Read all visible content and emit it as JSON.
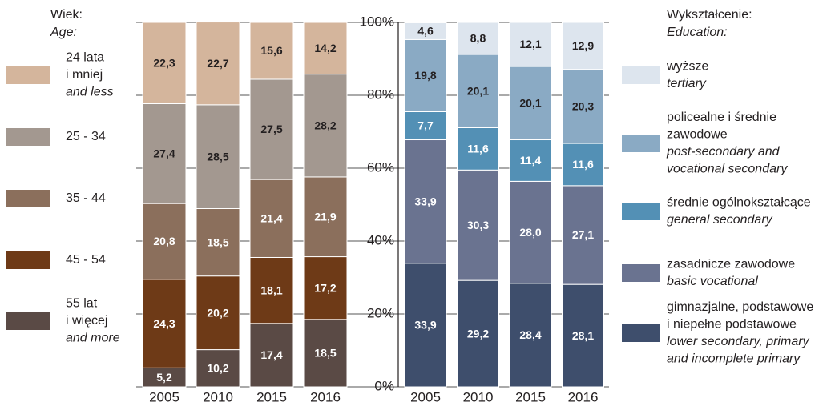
{
  "chart_data": [
    {
      "type": "stacked_bar",
      "legend_title": "Wiek:",
      "legend_title_en": "Age:",
      "categories": [
        "2005",
        "2010",
        "2015",
        "2016"
      ],
      "ylim": [
        0,
        100
      ],
      "grid": true,
      "series": [
        {
          "name": [
            "55 lat",
            "i więcej"
          ],
          "name_en": [
            "and more"
          ],
          "color": "#5a4a45",
          "label_color": "#ffffff",
          "values": [
            5.2,
            10.2,
            17.4,
            18.5
          ],
          "value_labels": [
            "5,2",
            "10,2",
            "17,4",
            "18,5"
          ]
        },
        {
          "name": [
            "45 - 54"
          ],
          "color": "#6e3a17",
          "label_color": "#ffffff",
          "values": [
            24.3,
            20.2,
            18.1,
            17.2
          ],
          "value_labels": [
            "24,3",
            "20,2",
            "18,1",
            "17,2"
          ]
        },
        {
          "name": [
            "35 - 44"
          ],
          "color": "#8b6f5c",
          "label_color": "#ffffff",
          "values": [
            20.8,
            18.5,
            21.4,
            21.9
          ],
          "value_labels": [
            "20,8",
            "18,5",
            "21,4",
            "21,9"
          ]
        },
        {
          "name": [
            "25 - 34"
          ],
          "color": "#a39890",
          "label_color": "#231f20",
          "values": [
            27.4,
            28.5,
            27.5,
            28.2
          ],
          "value_labels": [
            "27,4",
            "28,5",
            "27,5",
            "28,2"
          ]
        },
        {
          "name": [
            "24 lata",
            "i mniej"
          ],
          "name_en": [
            "and less"
          ],
          "color": "#d4b59c",
          "label_color": "#231f20",
          "values": [
            22.3,
            22.7,
            15.6,
            14.2
          ],
          "value_labels": [
            "22,3",
            "22,7",
            "15,6",
            "14,2"
          ]
        }
      ]
    },
    {
      "type": "stacked_bar",
      "legend_title": "Wykształcenie:",
      "legend_title_en": "Education:",
      "categories": [
        "2005",
        "2010",
        "2015",
        "2016"
      ],
      "ylim": [
        0,
        100
      ],
      "yticks": [
        {
          "value": 0,
          "label": "0%"
        },
        {
          "value": 20,
          "label": "20%"
        },
        {
          "value": 40,
          "label": "40%"
        },
        {
          "value": 60,
          "label": "60%"
        },
        {
          "value": 80,
          "label": "80%"
        },
        {
          "value": 100,
          "label": "100%"
        }
      ],
      "series": [
        {
          "name": [
            "gimnazjalne, podstawowe",
            "i niepełne podstawowe"
          ],
          "name_en": [
            "lower secondary, primary",
            "and incomplete primary"
          ],
          "color": "#3e4e6c",
          "label_color": "#ffffff",
          "values": [
            33.9,
            29.2,
            28.4,
            28.1
          ],
          "value_labels": [
            "33,9",
            "29,2",
            "28,4",
            "28,1"
          ]
        },
        {
          "name": [
            "zasadnicze zawodowe"
          ],
          "name_en": [
            "basic vocational"
          ],
          "color": "#6a7390",
          "label_color": "#ffffff",
          "values": [
            33.9,
            30.3,
            28.0,
            27.1
          ],
          "value_labels": [
            "33,9",
            "30,3",
            "28,0",
            "27,1"
          ]
        },
        {
          "name": [
            "średnie ogólnokształcące"
          ],
          "name_en": [
            "general secondary"
          ],
          "color": "#5390b5",
          "label_color": "#ffffff",
          "values": [
            7.7,
            11.6,
            11.4,
            11.6
          ],
          "value_labels": [
            "7,7",
            "11,6",
            "11,4",
            "11,6"
          ]
        },
        {
          "name": [
            "policealne i średnie",
            "zawodowe"
          ],
          "name_en": [
            "post-secondary and",
            "vocational secondary"
          ],
          "color": "#8aaac4",
          "label_color": "#231f20",
          "values": [
            19.8,
            20.1,
            20.1,
            20.3
          ],
          "value_labels": [
            "19,8",
            "20,1",
            "20,1",
            "20,3"
          ]
        },
        {
          "name": [
            "wyższe"
          ],
          "name_en": [
            "tertiary"
          ],
          "color": "#dde5ee",
          "label_color": "#231f20",
          "values": [
            4.6,
            8.8,
            12.1,
            12.9
          ],
          "value_labels": [
            "4,6",
            "8,8",
            "12,1",
            "12,9"
          ]
        }
      ]
    }
  ]
}
